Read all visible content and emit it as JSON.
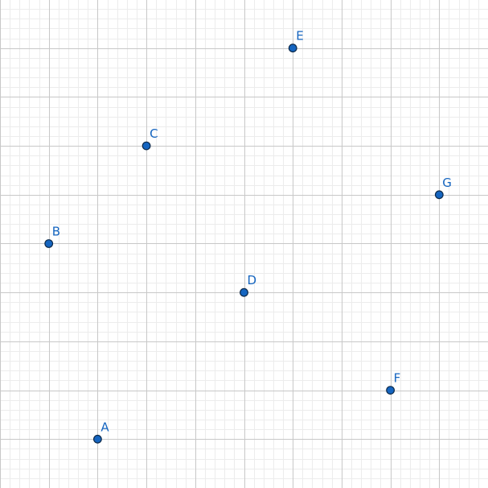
{
  "canvas": {
    "grid": true,
    "axes_visible": false,
    "major_line_color": "#c8c8c8",
    "minor_line_color": "#ececec",
    "background_color": "#ffffff"
  },
  "grid": {
    "x_range": [
      -1,
      9
    ],
    "y_range": [
      -1,
      9
    ],
    "major_step": 1,
    "minor_subdivisions": 5
  },
  "points": [
    {
      "label": "A",
      "x": 1,
      "y": 0
    },
    {
      "label": "B",
      "x": 0,
      "y": 4
    },
    {
      "label": "C",
      "x": 2,
      "y": 6
    },
    {
      "label": "D",
      "x": 4,
      "y": 3
    },
    {
      "label": "E",
      "x": 5,
      "y": 8
    },
    {
      "label": "F",
      "x": 7,
      "y": 1
    },
    {
      "label": "G",
      "x": 8,
      "y": 5
    }
  ],
  "style": {
    "point_fill": "#1565c0",
    "point_stroke": "#0d2a4a",
    "label_color": "#1565c0"
  }
}
